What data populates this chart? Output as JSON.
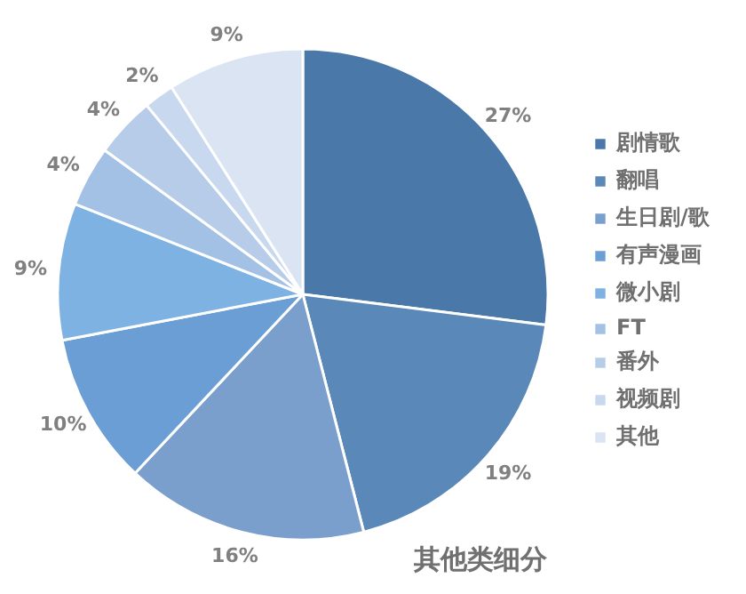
{
  "chart_data": {
    "type": "pie",
    "title": "其他类细分",
    "categories": [
      "剧情歌",
      "翻唱",
      "生日剧/歌",
      "有声漫画",
      "微小剧",
      "FT",
      "番外",
      "视频剧",
      "其他"
    ],
    "values": [
      27,
      19,
      16,
      10,
      9,
      4,
      4,
      2,
      9
    ],
    "value_labels": [
      "27%",
      "19%",
      "16%",
      "10%",
      "9%",
      "4%",
      "4%",
      "2%",
      "9%"
    ],
    "colors": [
      "#4a78a8",
      "#5a88b8",
      "#7a9fcc",
      "#6a9ed4",
      "#7eb2e2",
      "#a3c1e4",
      "#b6cce8",
      "#c8d8ee",
      "#dae4f2"
    ],
    "legend": "right"
  }
}
